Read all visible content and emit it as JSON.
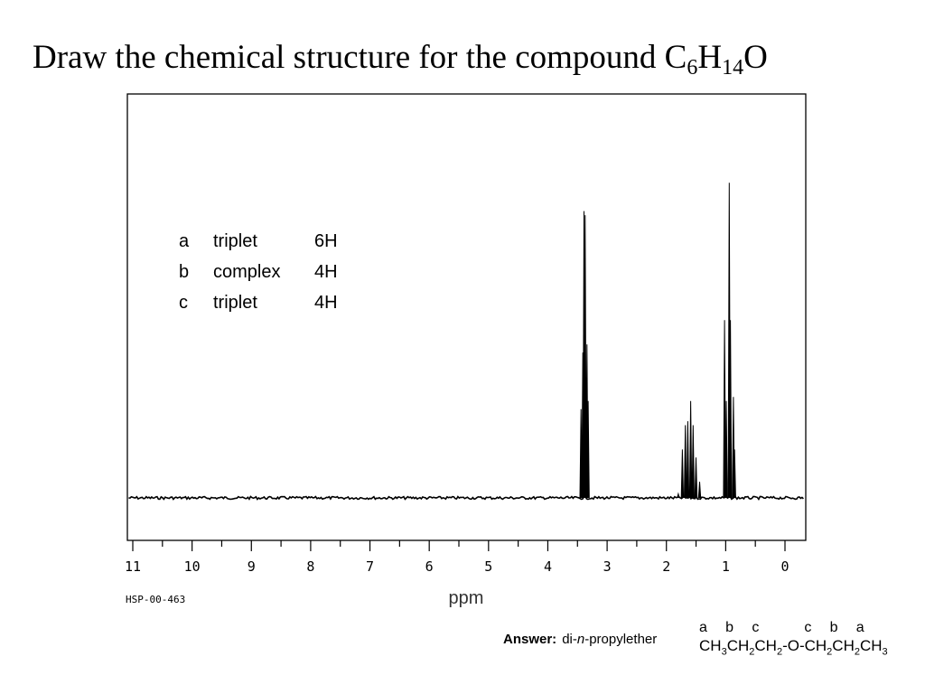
{
  "title": {
    "prefix": "Draw the chemical structure for the compound C",
    "sub1": "6",
    "mid": "H",
    "sub2": "14",
    "suffix": "O"
  },
  "peak_table": [
    {
      "label": "a",
      "multiplicity": "triplet",
      "integration": "6H"
    },
    {
      "label": "b",
      "multiplicity": "complex",
      "integration": "4H"
    },
    {
      "label": "c",
      "multiplicity": "triplet",
      "integration": "4H"
    }
  ],
  "chart_data": {
    "type": "line",
    "xlabel": "ppm",
    "xlim": [
      11,
      0
    ],
    "x_ticks": [
      11,
      10,
      9,
      8,
      7,
      6,
      5,
      4,
      3,
      2,
      1,
      0
    ],
    "grid": false,
    "spectrum_id": "HSP-00-463",
    "peaks": [
      {
        "x": 3.44,
        "y": 0.22
      },
      {
        "x": 3.41,
        "y": 0.36
      },
      {
        "x": 3.39,
        "y": 0.71
      },
      {
        "x": 3.37,
        "y": 0.7
      },
      {
        "x": 3.34,
        "y": 0.38
      },
      {
        "x": 3.32,
        "y": 0.24
      },
      {
        "x": 1.8,
        "y": 0.01
      },
      {
        "x": 1.73,
        "y": 0.12
      },
      {
        "x": 1.68,
        "y": 0.18
      },
      {
        "x": 1.64,
        "y": 0.19
      },
      {
        "x": 1.59,
        "y": 0.24
      },
      {
        "x": 1.55,
        "y": 0.18
      },
      {
        "x": 1.5,
        "y": 0.1
      },
      {
        "x": 1.44,
        "y": 0.04
      },
      {
        "x": 1.02,
        "y": 0.44
      },
      {
        "x": 0.99,
        "y": 0.24
      },
      {
        "x": 0.94,
        "y": 0.78
      },
      {
        "x": 0.92,
        "y": 0.44
      },
      {
        "x": 0.87,
        "y": 0.25
      },
      {
        "x": 0.85,
        "y": 0.12
      }
    ]
  },
  "answer": {
    "label": "Answer:",
    "name_pre": "di-",
    "name_italic": "n",
    "name_post": "-propylether",
    "letters": "a    b    c          c    b    a",
    "structure": "CH3CH2CH2-O-CH2CH2CH3"
  }
}
